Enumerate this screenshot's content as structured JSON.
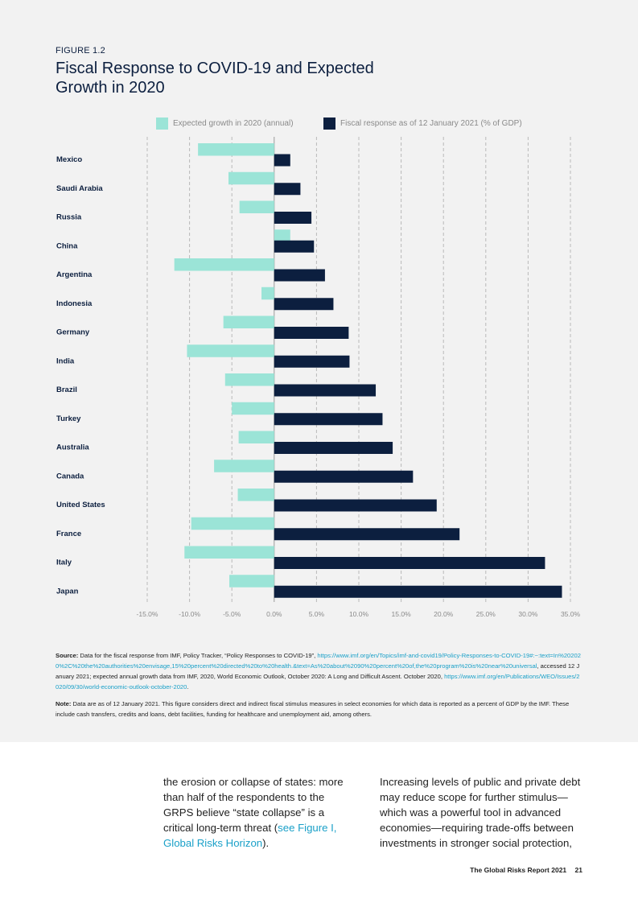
{
  "figure": {
    "label": "FIGURE 1.2",
    "title": "Fiscal Response to COVID-19 and Expected Growth in 2020"
  },
  "legend": {
    "growth_label": "Expected growth in 2020 (annual)",
    "fiscal_label": "Fiscal response as of 12 January 2021 (% of GDP)"
  },
  "colors": {
    "growth": "#9be4d7",
    "fiscal": "#0c1f3f",
    "panel_bg": "#f2f2f2",
    "link": "#1aa0c8"
  },
  "chart_data": {
    "type": "bar",
    "orientation": "horizontal",
    "categories": [
      "Mexico",
      "Saudi Arabia",
      "Russia",
      "China",
      "Argentina",
      "Indonesia",
      "Germany",
      "India",
      "Brazil",
      "Turkey",
      "Australia",
      "Canada",
      "United States",
      "France",
      "Italy",
      "Japan"
    ],
    "series": [
      {
        "name": "Expected growth in 2020 (annual)",
        "values": [
          -9.0,
          -5.4,
          -4.1,
          1.9,
          -11.8,
          -1.5,
          -6.0,
          -10.3,
          -5.8,
          -5.0,
          -4.2,
          -7.1,
          -4.3,
          -9.8,
          -10.6,
          -5.3
        ]
      },
      {
        "name": "Fiscal response as of 12 January 2021 (% of GDP)",
        "values": [
          1.9,
          3.1,
          4.4,
          4.7,
          6.0,
          7.0,
          8.8,
          8.9,
          12.0,
          12.8,
          14.0,
          16.4,
          19.2,
          21.9,
          32.0,
          34.0
        ]
      }
    ],
    "xlim": [
      -15,
      35
    ],
    "xticks": [
      "-15.0%",
      "-10.0%",
      "-5.0%",
      "0.0%",
      "5.0%",
      "10.0%",
      "15.0%",
      "20.0%",
      "25.0%",
      "30.0%",
      "35.0%"
    ],
    "xtick_values": [
      -15,
      -10,
      -5,
      0,
      5,
      10,
      15,
      20,
      25,
      30,
      35
    ],
    "grid": "vertical dashed",
    "legend_position": "top"
  },
  "notes": {
    "source_head": "Source:",
    "source_text_1": "Data for the fiscal response from IMF, Policy Tracker, “Policy Responses to COVID-19”,",
    "source_link_1": "https://www.imf.org/en/Topics/imf-and-covid19/Policy-Responses-to-COVID-19#:~:text=In%202020%2C%20the%20authorities%20envisage,15%20percent%20directed%20to%20health.&text=As%20about%2090%20percent%20of,the%20program%20is%20near%20universal",
    "source_text_2": ", accessed 12 January 2021; expected annual growth data from IMF, 2020, World Economic Outlook, October 2020: A Long and Difficult Ascent. October 2020,",
    "source_link_2": "https://www.imf.org/en/Publications/WEO/Issues/2020/09/30/world-economic-outlook-october-2020",
    "source_end": ".",
    "note_head": "Note:",
    "note_text": "Data are as of 12 January 2021. This figure considers direct and indirect fiscal stimulus measures in select economies for which data is reported as a percent of GDP by the IMF. These include cash transfers, credits and loans, debt facilities, funding for healthcare and unemployment aid, among others."
  },
  "body": {
    "col1_text": "the erosion or collapse of states: more than half of the respondents to the GRPS believe “state collapse” is a critical long-term threat (",
    "col1_link": "see Figure I, Global Risks Horizon",
    "col1_end": ").",
    "col2_text": "Increasing levels of public and private debt may reduce scope for further stimulus—which was a powerful tool in advanced economies—requiring trade-offs between investments in stronger social protection,"
  },
  "footer": {
    "title": "The Global Risks Report 2021",
    "page": "21"
  }
}
